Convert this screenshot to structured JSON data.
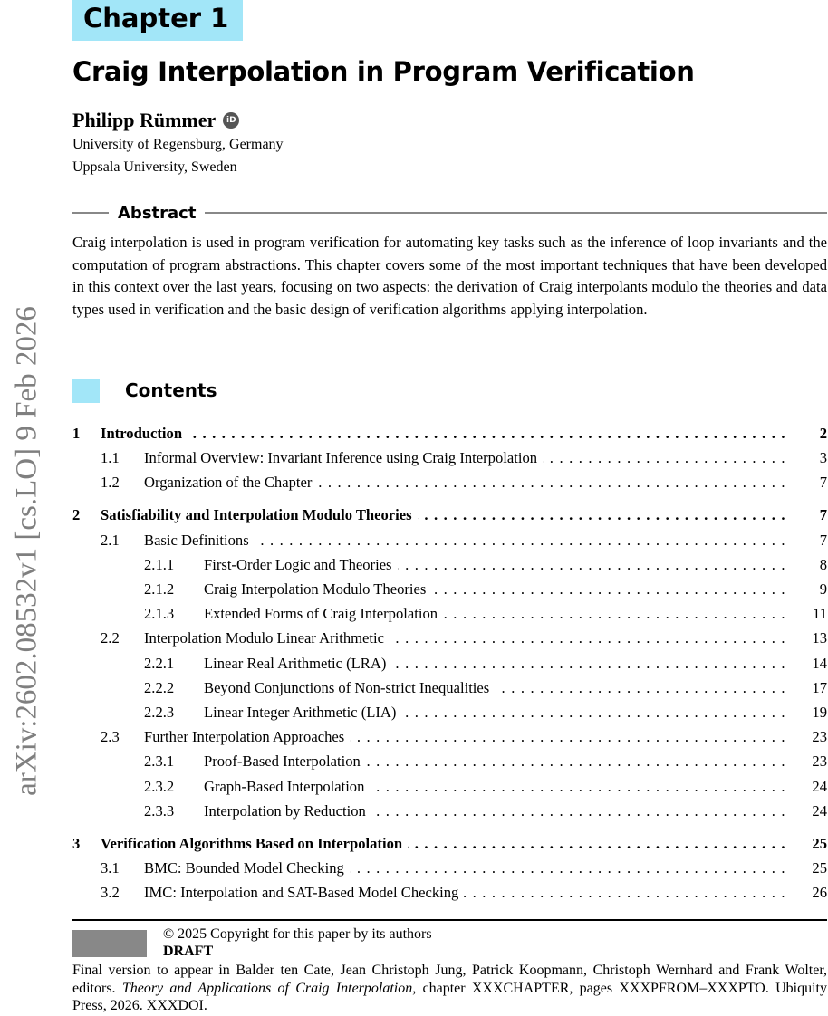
{
  "chapter_label": "Chapter 1",
  "title": "Craig Interpolation in Program Verification",
  "author": {
    "name": "Philipp Rümmer",
    "orcid_icon": "iD",
    "affiliations": [
      "University of Regensburg, Germany",
      "Uppsala University, Sweden"
    ]
  },
  "abstract": {
    "heading": "Abstract",
    "text": "Craig interpolation is used in program verification for automating key tasks such as the inference of loop invariants and the computation of program abstractions. This chapter covers some of the most important techniques that have been developed in this context over the last years, focusing on two aspects: the derivation of Craig interpolants modulo the theories and data types used in verification and the basic design of verification algorithms applying interpolation."
  },
  "contents_heading": "Contents",
  "toc": [
    {
      "num": "1",
      "title": "Introduction",
      "page": "2",
      "level": 1
    },
    {
      "num": "1.1",
      "title": "Informal Overview: Invariant Inference using Craig Interpolation",
      "page": "3",
      "level": 2
    },
    {
      "num": "1.2",
      "title": "Organization of the Chapter",
      "page": "7",
      "level": 2
    },
    {
      "num": "2",
      "title": "Satisfiability and Interpolation Modulo Theories",
      "page": "7",
      "level": 1
    },
    {
      "num": "2.1",
      "title": "Basic Definitions",
      "page": "7",
      "level": 2
    },
    {
      "num": "2.1.1",
      "title": "First-Order Logic and Theories",
      "page": "8",
      "level": 3
    },
    {
      "num": "2.1.2",
      "title": "Craig Interpolation Modulo Theories",
      "page": "9",
      "level": 3
    },
    {
      "num": "2.1.3",
      "title": "Extended Forms of Craig Interpolation",
      "page": "11",
      "level": 3
    },
    {
      "num": "2.2",
      "title": "Interpolation Modulo Linear Arithmetic",
      "page": "13",
      "level": 2
    },
    {
      "num": "2.2.1",
      "title": "Linear Real Arithmetic (LRA)",
      "page": "14",
      "level": 3
    },
    {
      "num": "2.2.2",
      "title": "Beyond Conjunctions of Non-strict Inequalities",
      "page": "17",
      "level": 3
    },
    {
      "num": "2.2.3",
      "title": "Linear Integer Arithmetic (LIA)",
      "page": "19",
      "level": 3
    },
    {
      "num": "2.3",
      "title": "Further Interpolation Approaches",
      "page": "23",
      "level": 2
    },
    {
      "num": "2.3.1",
      "title": "Proof-Based Interpolation",
      "page": "23",
      "level": 3
    },
    {
      "num": "2.3.2",
      "title": "Graph-Based Interpolation",
      "page": "24",
      "level": 3
    },
    {
      "num": "2.3.3",
      "title": "Interpolation by Reduction",
      "page": "24",
      "level": 3
    },
    {
      "num": "3",
      "title": "Verification Algorithms Based on Interpolation",
      "page": "25",
      "level": 1
    },
    {
      "num": "3.1",
      "title": "BMC: Bounded Model Checking",
      "page": "25",
      "level": 2
    },
    {
      "num": "3.2",
      "title": "IMC: Interpolation and SAT-Based Model Checking",
      "page": "26",
      "level": 2
    }
  ],
  "arxiv_stamp": "arXiv:2602.08532v1  [cs.LO]  9 Feb 2026",
  "footer": {
    "copyright": "© 2025 Copyright for this paper by its authors",
    "draft": "DRAFT",
    "final_pre": "Final version to appear in Balder ten Cate, Jean Christoph Jung, Patrick Koopmann, Christoph Wernhard and Frank Wolter, editors. ",
    "final_book": "Theory and Applications of Craig Interpolation",
    "final_post": ", chapter XXXCHAPTER, pages XXXPFROM–XXXPTO. Ubiquity Press, 2026. XXXDOI."
  },
  "colors": {
    "accent": "#a2e6f8",
    "stamp": "#7f7f7f"
  }
}
